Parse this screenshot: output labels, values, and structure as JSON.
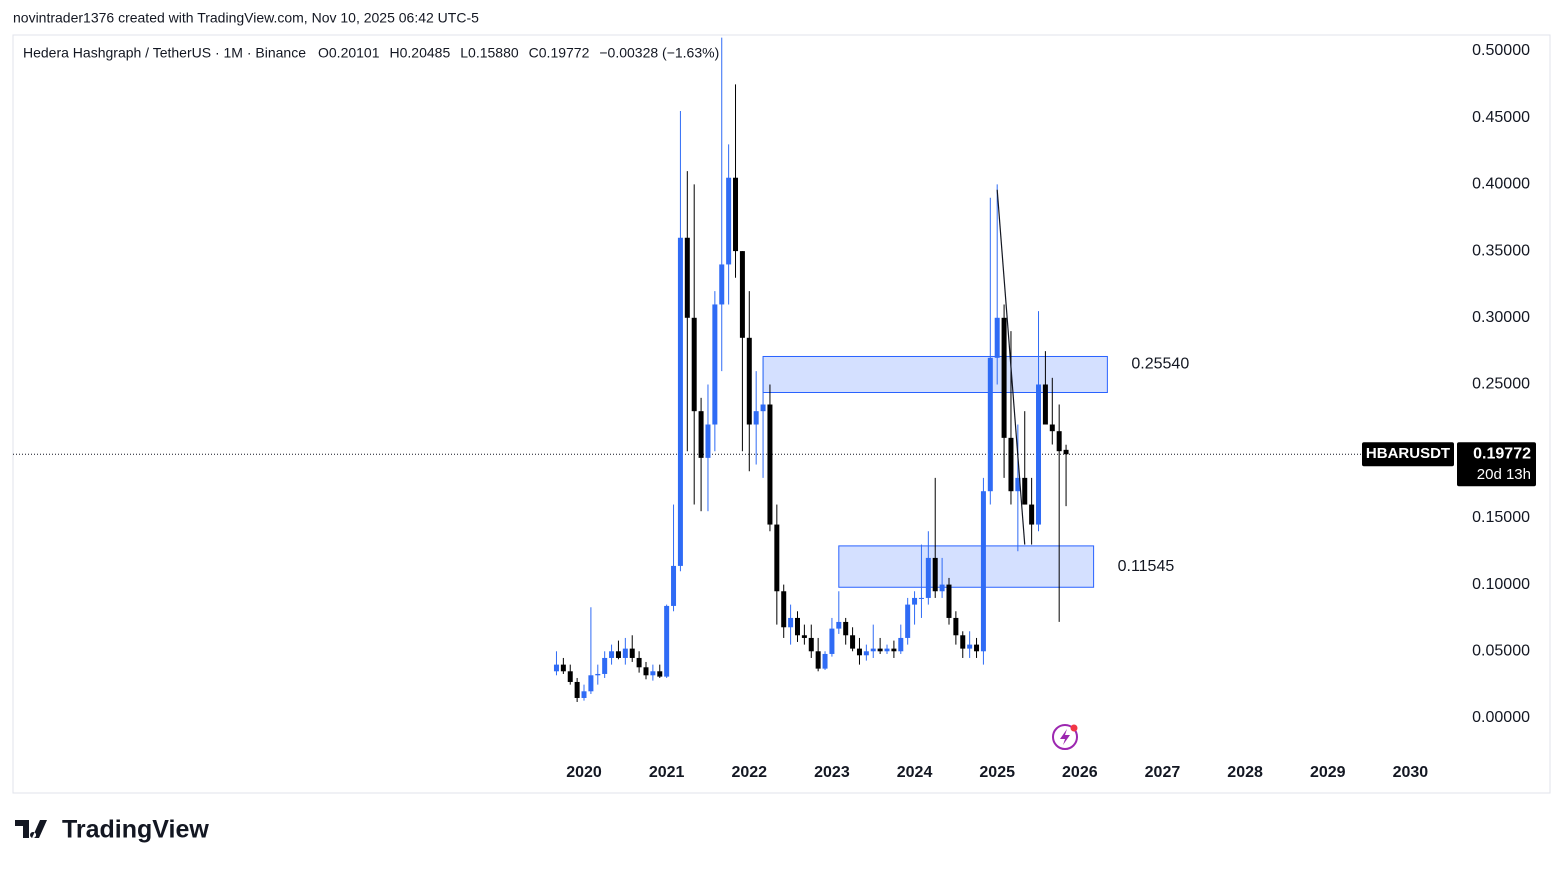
{
  "header": "novintrader1376 created with TradingView.com, Nov 10, 2025 06:42 UTC-5",
  "brand": "TradingView",
  "chart_data": {
    "type": "candlestick",
    "title": "Hedera Hashgraph / TetherUS · 1M · Binance",
    "ohlc_legend": [
      {
        "key": "O",
        "text": "0.20101"
      },
      {
        "key": "H",
        "text": "0.20485"
      },
      {
        "key": "L",
        "text": "0.15880"
      },
      {
        "key": "C",
        "text": "0.19772"
      }
    ],
    "change": "−0.00328 (−1.63%)",
    "symbol": "HBARUSDT",
    "countdown": "20d 13h",
    "up_color": "#2f6bf5",
    "down_color": "#000000",
    "x": [
      "2019-09",
      "2019-10",
      "2019-11",
      "2019-12",
      "2020-01",
      "2020-02",
      "2020-03",
      "2020-04",
      "2020-05",
      "2020-06",
      "2020-07",
      "2020-08",
      "2020-09",
      "2020-10",
      "2020-11",
      "2020-12",
      "2021-01",
      "2021-02",
      "2021-03",
      "2021-04",
      "2021-05",
      "2021-06",
      "2021-07",
      "2021-08",
      "2021-09",
      "2021-10",
      "2021-11",
      "2021-12",
      "2022-01",
      "2022-02",
      "2022-03",
      "2022-04",
      "2022-05",
      "2022-06",
      "2022-07",
      "2022-08",
      "2022-09",
      "2022-10",
      "2022-11",
      "2022-12",
      "2023-01",
      "2023-02",
      "2023-03",
      "2023-04",
      "2023-05",
      "2023-06",
      "2023-07",
      "2023-08",
      "2023-09",
      "2023-10",
      "2023-11",
      "2023-12",
      "2024-01",
      "2024-02",
      "2024-03",
      "2024-04",
      "2024-05",
      "2024-06",
      "2024-07",
      "2024-08",
      "2024-09",
      "2024-10",
      "2024-11",
      "2024-12",
      "2025-01",
      "2025-02",
      "2025-03",
      "2025-04",
      "2025-05",
      "2025-06",
      "2025-07",
      "2025-08",
      "2025-09",
      "2025-10",
      "2025-11"
    ],
    "open": [
      0.035,
      0.04,
      0.035,
      0.027,
      0.015,
      0.02,
      0.032,
      0.033,
      0.045,
      0.05,
      0.045,
      0.052,
      0.045,
      0.038,
      0.032,
      0.035,
      0.031,
      0.084,
      0.114,
      0.36,
      0.3,
      0.23,
      0.195,
      0.22,
      0.31,
      0.34,
      0.405,
      0.35,
      0.285,
      0.22,
      0.23,
      0.235,
      0.145,
      0.095,
      0.068,
      0.075,
      0.062,
      0.06,
      0.05,
      0.037,
      0.048,
      0.067,
      0.072,
      0.062,
      0.052,
      0.047,
      0.05,
      0.052,
      0.05,
      0.052,
      0.05,
      0.06,
      0.085,
      0.09,
      0.09,
      0.12,
      0.095,
      0.1,
      0.075,
      0.062,
      0.052,
      0.055,
      0.05,
      0.17,
      0.27,
      0.3,
      0.21,
      0.17,
      0.18,
      0.16,
      0.145,
      0.25,
      0.22,
      0.215,
      0.20101
    ],
    "high": [
      0.05,
      0.045,
      0.04,
      0.03,
      0.025,
      0.083,
      0.04,
      0.05,
      0.055,
      0.058,
      0.06,
      0.062,
      0.05,
      0.042,
      0.04,
      0.04,
      0.085,
      0.16,
      0.455,
      0.41,
      0.4,
      0.24,
      0.25,
      0.32,
      0.51,
      0.43,
      0.475,
      0.35,
      0.32,
      0.26,
      0.27,
      0.25,
      0.16,
      0.1,
      0.085,
      0.08,
      0.07,
      0.07,
      0.06,
      0.05,
      0.075,
      0.095,
      0.075,
      0.068,
      0.06,
      0.055,
      0.07,
      0.06,
      0.055,
      0.058,
      0.07,
      0.09,
      0.095,
      0.13,
      0.14,
      0.18,
      0.12,
      0.105,
      0.08,
      0.065,
      0.065,
      0.06,
      0.18,
      0.39,
      0.4,
      0.31,
      0.29,
      0.22,
      0.23,
      0.18,
      0.305,
      0.275,
      0.255,
      0.235,
      0.20485
    ],
    "low": [
      0.032,
      0.033,
      0.025,
      0.012,
      0.013,
      0.018,
      0.025,
      0.03,
      0.04,
      0.044,
      0.04,
      0.042,
      0.034,
      0.029,
      0.028,
      0.03,
      0.03,
      0.08,
      0.11,
      0.2,
      0.16,
      0.155,
      0.155,
      0.2,
      0.26,
      0.31,
      0.33,
      0.2,
      0.185,
      0.19,
      0.18,
      0.14,
      0.07,
      0.06,
      0.055,
      0.057,
      0.055,
      0.045,
      0.035,
      0.036,
      0.046,
      0.063,
      0.055,
      0.05,
      0.04,
      0.043,
      0.045,
      0.048,
      0.048,
      0.045,
      0.048,
      0.055,
      0.07,
      0.075,
      0.085,
      0.09,
      0.09,
      0.07,
      0.055,
      0.045,
      0.045,
      0.045,
      0.04,
      0.16,
      0.25,
      0.18,
      0.16,
      0.125,
      0.16,
      0.13,
      0.14,
      0.22,
      0.205,
      0.072,
      0.1588
    ],
    "close": [
      0.04,
      0.035,
      0.027,
      0.015,
      0.02,
      0.032,
      0.033,
      0.045,
      0.05,
      0.045,
      0.052,
      0.045,
      0.038,
      0.032,
      0.035,
      0.031,
      0.084,
      0.114,
      0.36,
      0.3,
      0.23,
      0.195,
      0.22,
      0.31,
      0.34,
      0.405,
      0.35,
      0.285,
      0.22,
      0.23,
      0.235,
      0.145,
      0.095,
      0.068,
      0.075,
      0.062,
      0.06,
      0.05,
      0.037,
      0.048,
      0.067,
      0.072,
      0.062,
      0.052,
      0.047,
      0.05,
      0.052,
      0.05,
      0.052,
      0.05,
      0.06,
      0.085,
      0.09,
      0.09,
      0.12,
      0.095,
      0.1,
      0.075,
      0.062,
      0.052,
      0.055,
      0.05,
      0.17,
      0.27,
      0.3,
      0.21,
      0.17,
      0.18,
      0.16,
      0.145,
      0.25,
      0.22,
      0.215,
      0.2,
      0.19772
    ],
    "zones": [
      {
        "start": "2022-03",
        "end": "2026-05",
        "bottom": 0.244,
        "top": 0.271,
        "label": "0.25540"
      },
      {
        "start": "2023-02",
        "end": "2026-03",
        "bottom": 0.098,
        "top": 0.129,
        "label": "0.11545"
      }
    ],
    "trendline": {
      "start": "2025-01",
      "start_value": 0.396,
      "end": "2025-05",
      "end_value": 0.13
    },
    "xlim": [
      2013.09,
      2030.54
    ],
    "xticks": [
      2020,
      2021,
      2022,
      2023,
      2024,
      2025,
      2026,
      2027,
      2028,
      2029,
      2030
    ],
    "ylim": [
      -0.0315,
      0.512
    ],
    "yticks": [
      {
        "value": 0,
        "label": "0.00000"
      },
      {
        "value": 0.05,
        "label": "0.05000"
      },
      {
        "value": 0.1,
        "label": "0.10000"
      },
      {
        "value": 0.15,
        "label": "0.15000"
      },
      {
        "value": 0.25,
        "label": "0.25000"
      },
      {
        "value": 0.3,
        "label": "0.30000"
      },
      {
        "value": 0.35,
        "label": "0.35000"
      },
      {
        "value": 0.4,
        "label": "0.40000"
      },
      {
        "value": 0.45,
        "label": "0.45000"
      },
      {
        "value": 0.5,
        "label": "0.50000"
      }
    ]
  }
}
